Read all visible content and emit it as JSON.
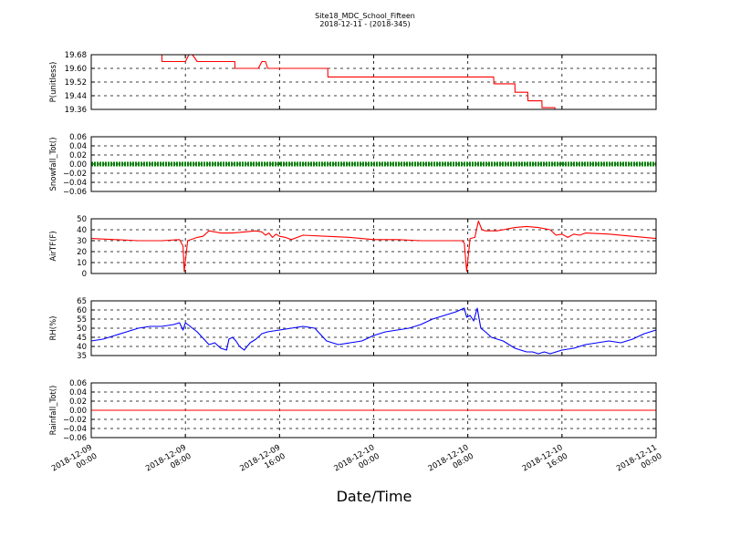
{
  "figure": {
    "title_line1": "Site18_MDC_School_Fifteen",
    "title_line2": "2018-12-11 - (2018-345)",
    "xlabel": "Date/Time",
    "x_ticks": [
      {
        "line1": "2018-12-09",
        "line2": "00:00"
      },
      {
        "line1": "2018-12-09",
        "line2": "08:00"
      },
      {
        "line1": "2018-12-09",
        "line2": "16:00"
      },
      {
        "line1": "2018-12-10",
        "line2": "00:00"
      },
      {
        "line1": "2018-12-10",
        "line2": "08:00"
      },
      {
        "line1": "2018-12-10",
        "line2": "16:00"
      },
      {
        "line1": "2018-12-11",
        "line2": "00:00"
      }
    ]
  },
  "colors": {
    "red": "#ff0000",
    "green": "#008000",
    "blue": "#0000ff"
  },
  "chart_data": [
    {
      "type": "line",
      "ylabel": "P(unitless)",
      "ylim": [
        19.36,
        19.68
      ],
      "y_ticks": [
        "19.36",
        "19.44",
        "19.52",
        "19.60",
        "19.68"
      ],
      "grid": true,
      "x_hours": [
        0,
        6,
        6.01,
        8,
        8.3,
        8.6,
        9,
        12.2,
        12.21,
        14.2,
        14.5,
        14.8,
        15,
        20.1,
        20.11,
        34.2,
        34.21,
        36,
        36.01,
        37.1,
        37.11,
        38.3,
        38.31,
        39.4,
        39.41,
        48
      ],
      "series": [
        {
          "color": "red",
          "style": "line",
          "values": [
            19.68,
            19.68,
            19.64,
            19.64,
            19.68,
            19.68,
            19.64,
            19.64,
            19.6,
            19.6,
            19.64,
            19.64,
            19.6,
            19.6,
            19.55,
            19.55,
            19.51,
            19.51,
            19.46,
            19.46,
            19.41,
            19.41,
            19.37,
            19.37,
            19.36,
            19.36
          ]
        }
      ]
    },
    {
      "type": "line",
      "ylabel": "Snowfall_Tot()",
      "ylim": [
        -0.06,
        0.06
      ],
      "y_ticks": [
        "−0.06",
        "−0.04",
        "−0.02",
        "0.00",
        "0.02",
        "0.04",
        "0.06"
      ],
      "grid": true,
      "x_hours": [
        0,
        48
      ],
      "series": [
        {
          "color": "green",
          "style": "thick-dotted",
          "values": [
            0,
            0
          ]
        }
      ]
    },
    {
      "type": "line",
      "ylabel": "AirTF(F)",
      "ylim": [
        0,
        50
      ],
      "y_ticks": [
        "0",
        "10",
        "20",
        "30",
        "40",
        "50"
      ],
      "grid": true,
      "x_hours": [
        0,
        2,
        4,
        6,
        7.5,
        7.8,
        7.9,
        8.2,
        9,
        9.5,
        10,
        11,
        12,
        13,
        14,
        14.5,
        14.8,
        15.1,
        15.4,
        15.7,
        16,
        16.5,
        17,
        18,
        20,
        22,
        24,
        26,
        28,
        30,
        31.5,
        31.7,
        31.9,
        32.2,
        32.6,
        32.9,
        33.2,
        33.5,
        34,
        34.5,
        35,
        36,
        37,
        38,
        39,
        39.5,
        40,
        40.5,
        41,
        41.5,
        42,
        44,
        46,
        48
      ],
      "series": [
        {
          "color": "red",
          "style": "line",
          "values": [
            32,
            31,
            30,
            30,
            31,
            25,
            2,
            30,
            33,
            34,
            39,
            37,
            37,
            38,
            39,
            38,
            35,
            37,
            33,
            36,
            34,
            33,
            31,
            35,
            34,
            33,
            31,
            31,
            30,
            30,
            30,
            28,
            2,
            32,
            33,
            48,
            40,
            39,
            39,
            39,
            40,
            42,
            43,
            42,
            40,
            35,
            36,
            33,
            36,
            35,
            37,
            36,
            34,
            32
          ]
        }
      ]
    },
    {
      "type": "line",
      "ylabel": "RH(%)",
      "ylim": [
        35,
        65
      ],
      "y_ticks": [
        "35",
        "40",
        "45",
        "50",
        "55",
        "60",
        "65"
      ],
      "grid": true,
      "x_hours": [
        0,
        1,
        2,
        3,
        4,
        5,
        6,
        7,
        7.5,
        7.8,
        8,
        9,
        10,
        10.5,
        11,
        11.5,
        11.7,
        12,
        12.3,
        12.6,
        13,
        13.5,
        14,
        14.5,
        15,
        16,
        17,
        18,
        19,
        20,
        20.5,
        21,
        22,
        23,
        24,
        25,
        26,
        27,
        28,
        29,
        30,
        31,
        31.7,
        31.9,
        32.2,
        32.5,
        32.8,
        33.1,
        33.5,
        34,
        35,
        36,
        37,
        37.5,
        38,
        38.5,
        39,
        39.5,
        40,
        41,
        42,
        43,
        44,
        45,
        46,
        47,
        48
      ],
      "series": [
        {
          "color": "blue",
          "style": "line",
          "values": [
            43,
            44,
            46,
            48,
            50,
            51,
            51,
            52,
            53,
            49,
            53,
            48,
            41,
            42,
            39,
            38,
            44,
            45,
            43,
            40,
            38,
            42,
            44,
            47,
            48,
            49,
            50,
            51,
            50,
            43,
            42,
            41,
            42,
            43,
            46,
            48,
            49,
            50,
            52,
            55,
            57,
            59,
            61,
            56,
            57,
            54,
            61,
            50,
            48,
            45,
            43,
            39,
            37,
            37,
            36,
            37,
            36,
            37,
            38,
            39,
            41,
            42,
            43,
            42,
            44,
            47,
            49
          ]
        }
      ]
    },
    {
      "type": "line",
      "ylabel": "Rainfall_Tot()",
      "ylim": [
        -0.06,
        0.06
      ],
      "y_ticks": [
        "−0.06",
        "−0.04",
        "−0.02",
        "0.00",
        "0.02",
        "0.04",
        "0.06"
      ],
      "grid": true,
      "x_hours": [
        0,
        48
      ],
      "series": [
        {
          "color": "red",
          "style": "line",
          "values": [
            0,
            0
          ]
        }
      ]
    }
  ]
}
